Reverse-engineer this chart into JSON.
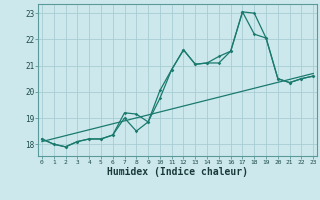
{
  "bg_color": "#cde8ec",
  "grid_color": "#a8cdd4",
  "line_color": "#1a7a6e",
  "xlabel": "Humidex (Indice chaleur)",
  "xlabel_fontsize": 7,
  "ytick_labels": [
    "18",
    "19",
    "20",
    "21",
    "22",
    "23"
  ],
  "ytick_vals": [
    18,
    19,
    20,
    21,
    22,
    23
  ],
  "xtick_vals": [
    0,
    1,
    2,
    3,
    4,
    5,
    6,
    7,
    8,
    9,
    10,
    11,
    12,
    13,
    14,
    15,
    16,
    17,
    18,
    19,
    20,
    21,
    22,
    23
  ],
  "xlim": [
    -0.3,
    23.3
  ],
  "ylim": [
    17.55,
    23.35
  ],
  "line1_x": [
    0,
    1,
    2,
    3,
    4,
    5,
    6,
    7,
    8,
    9,
    10,
    11,
    12,
    13,
    14,
    15,
    16,
    17,
    18,
    19,
    20,
    21,
    22,
    23
  ],
  "line1_y": [
    18.2,
    18.0,
    17.9,
    18.1,
    18.2,
    18.2,
    18.35,
    19.2,
    19.15,
    18.85,
    20.05,
    20.85,
    21.6,
    21.05,
    21.1,
    21.1,
    21.55,
    23.05,
    23.0,
    22.05,
    20.5,
    20.35,
    20.5,
    20.6
  ],
  "line2_x": [
    0,
    1,
    2,
    3,
    4,
    5,
    6,
    7,
    8,
    9,
    10,
    11,
    12,
    13,
    14,
    15,
    16,
    17,
    18,
    19,
    20,
    21,
    22,
    23
  ],
  "line2_y": [
    18.2,
    18.0,
    17.9,
    18.1,
    18.2,
    18.2,
    18.35,
    19.0,
    18.5,
    18.85,
    19.75,
    20.85,
    21.6,
    21.05,
    21.1,
    21.35,
    21.55,
    23.05,
    22.2,
    22.05,
    20.5,
    20.35,
    20.5,
    20.6
  ],
  "line3_x": [
    0,
    23
  ],
  "line3_y": [
    18.1,
    20.7
  ]
}
